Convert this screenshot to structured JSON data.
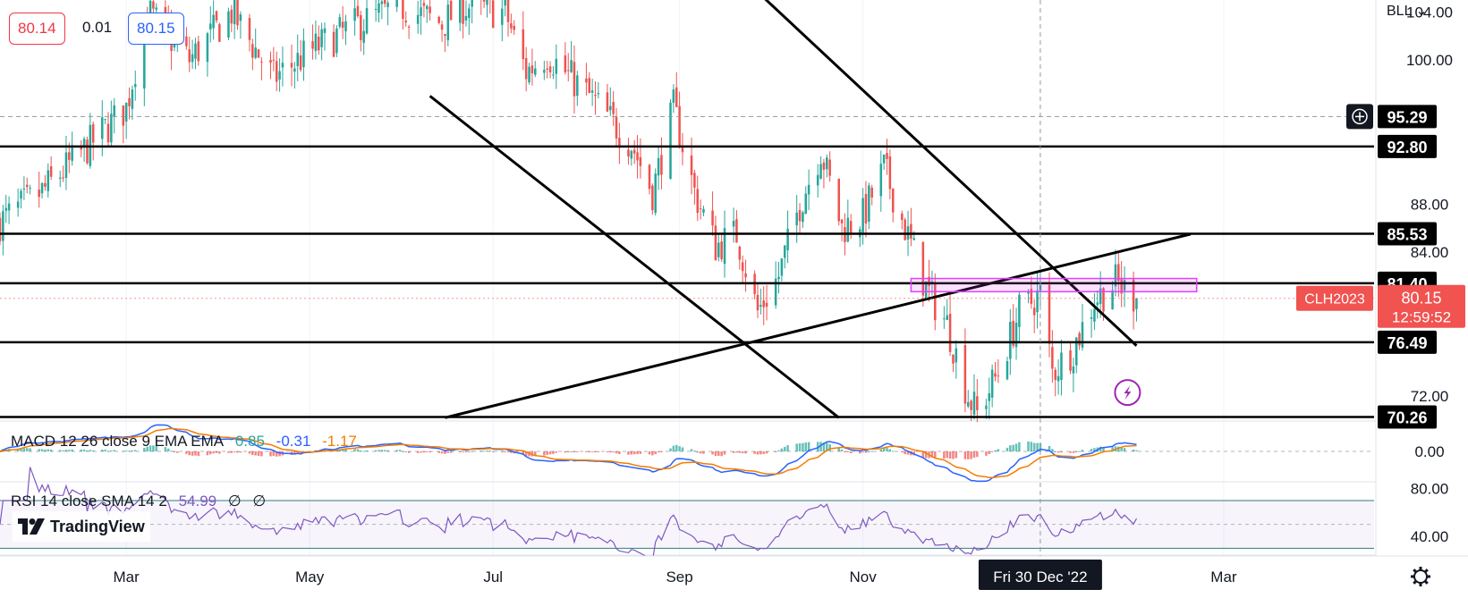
{
  "quote_pills": {
    "sell": "80.14",
    "spread": "0.01",
    "buy": "80.15"
  },
  "scale_menu": "BLL",
  "symbol_tag": "CLH2023",
  "price_badge": {
    "price": "80.15",
    "countdown": "12:59:52"
  },
  "crosshair_date": "Fri 30 Dec '22",
  "logo_text": "TradingView",
  "colors": {
    "up": "#26a69a",
    "down": "#ef5350",
    "macd": "#2962ff",
    "signal": "#f57c00",
    "rsi": "#7e57c2",
    "highlight": "#e040fb"
  },
  "macd_panel": {
    "label": "MACD 12 26 close 9 EMA EMA",
    "hist": "0.85",
    "macd": "-0.31",
    "signal": "-1.17"
  },
  "rsi_panel": {
    "label": "RSI 14 close SMA 14 2",
    "value": "54.99",
    "extra1": "∅",
    "extra2": "∅"
  },
  "chart_data": {
    "type": "candlestick",
    "x_range": [
      "2022-01-18",
      "2023-04-20"
    ],
    "y_range": [
      70,
      105
    ],
    "price_axis_ticks": [
      104,
      100,
      88,
      84,
      72
    ],
    "time_axis_labels": [
      {
        "label": "Mar",
        "date": "2022-03-01"
      },
      {
        "label": "May",
        "date": "2022-05-01"
      },
      {
        "label": "Jul",
        "date": "2022-07-01"
      },
      {
        "label": "Sep",
        "date": "2022-09-01"
      },
      {
        "label": "Nov",
        "date": "2022-11-01"
      },
      {
        "label": "Mar",
        "date": "2023-03-01"
      }
    ],
    "horizontal_levels": [
      92.8,
      85.53,
      81.4,
      76.49,
      70.26
    ],
    "dashed_level": 95.29,
    "trendlines": [
      {
        "from": [
          "2022-06-10",
          97.0
        ],
        "to": [
          "2022-10-24",
          70.2
        ]
      },
      {
        "from": [
          "2022-08-01",
          119.0
        ],
        "to": [
          "2023-01-31",
          76.2
        ]
      },
      {
        "from": [
          "2022-06-15",
          70.2
        ],
        "to": [
          "2023-02-18",
          85.5
        ]
      }
    ],
    "zone": {
      "from": "2022-11-17",
      "to": "2023-02-20",
      "low": 80.7,
      "high": 81.8
    },
    "crosshair": {
      "date": "2022-12-30",
      "price": 95.29
    },
    "last_price": 80.15,
    "trend_path": [
      [
        "2022-01-18",
        86.5
      ],
      [
        "2022-02-01",
        89.0
      ],
      [
        "2022-02-15",
        92.5
      ],
      [
        "2022-03-01",
        96.0
      ],
      [
        "2022-03-08",
        104.0
      ],
      [
        "2022-03-22",
        100.0
      ],
      [
        "2022-04-05",
        104.0
      ],
      [
        "2022-04-19",
        98.5
      ],
      [
        "2022-05-03",
        101.0
      ],
      [
        "2022-05-17",
        103.0
      ],
      [
        "2022-05-31",
        104.5
      ],
      [
        "2022-06-14",
        103.0
      ],
      [
        "2022-06-21",
        104.5
      ],
      [
        "2022-07-05",
        104.0
      ],
      [
        "2022-07-12",
        99.0
      ],
      [
        "2022-07-19",
        100.5
      ],
      [
        "2022-08-02",
        97.0
      ],
      [
        "2022-08-16",
        93.0
      ],
      [
        "2022-08-23",
        89.0
      ],
      [
        "2022-08-30",
        96.0
      ],
      [
        "2022-09-06",
        89.0
      ],
      [
        "2022-09-13",
        84.5
      ],
      [
        "2022-09-20",
        85.5
      ],
      [
        "2022-09-27",
        79.0
      ],
      [
        "2022-10-04",
        82.0
      ],
      [
        "2022-10-11",
        88.0
      ],
      [
        "2022-10-18",
        92.5
      ],
      [
        "2022-10-25",
        86.0
      ],
      [
        "2022-11-01",
        87.0
      ],
      [
        "2022-11-08",
        91.0
      ],
      [
        "2022-11-15",
        86.0
      ],
      [
        "2022-11-22",
        81.0
      ],
      [
        "2022-11-29",
        78.0
      ],
      [
        "2022-12-06",
        72.0
      ],
      [
        "2022-12-09",
        70.5
      ],
      [
        "2022-12-16",
        74.0
      ],
      [
        "2022-12-23",
        79.0
      ],
      [
        "2022-12-30",
        80.5
      ],
      [
        "2023-01-03",
        74.0
      ],
      [
        "2023-01-10",
        76.0
      ],
      [
        "2023-01-17",
        80.0
      ],
      [
        "2023-01-24",
        81.5
      ],
      [
        "2023-01-31",
        80.15
      ]
    ],
    "macd_range": [
      -4,
      4
    ],
    "macd_ticks": [
      0.0
    ],
    "rsi_range": [
      25,
      85
    ],
    "rsi_bands": [
      70,
      50,
      30
    ],
    "rsi_ticks": [
      80.0,
      40.0
    ],
    "rsi_last": 54.99
  }
}
